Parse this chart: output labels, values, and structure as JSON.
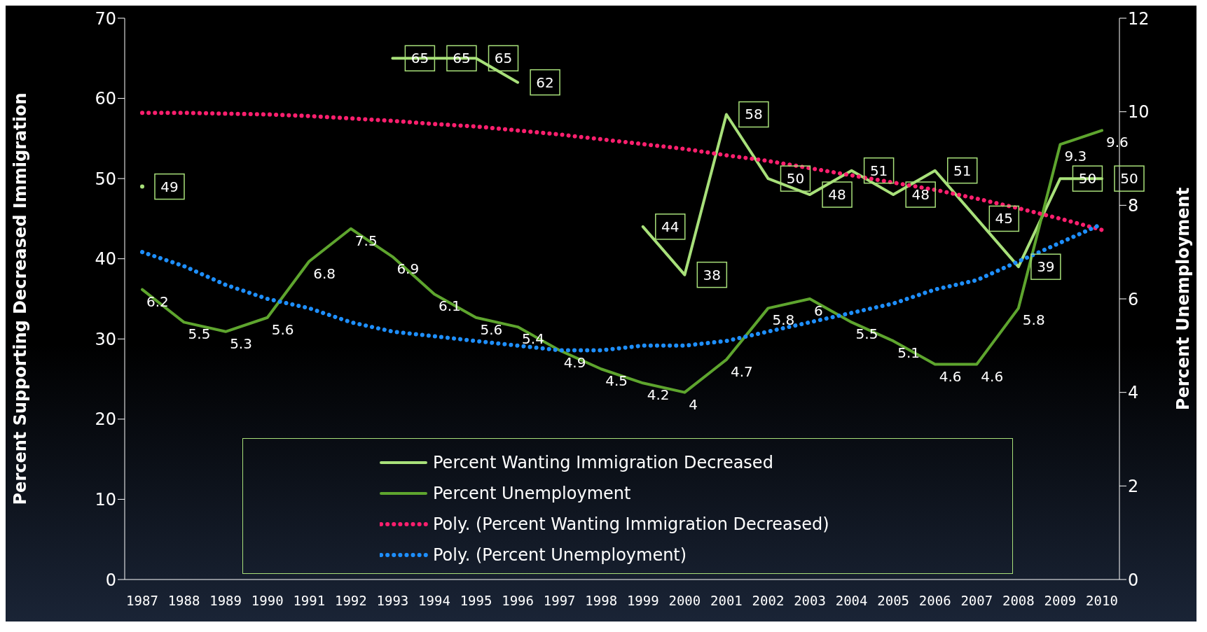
{
  "chart_data": {
    "type": "line",
    "ylabel": "Percent Supporting Decreased Immigration",
    "y2label": "Percent Unemployment",
    "categories": [
      "1987",
      "1988",
      "1989",
      "1990",
      "1991",
      "1992",
      "1993",
      "1994",
      "1995",
      "1996",
      "1997",
      "1998",
      "1999",
      "2000",
      "2001",
      "2002",
      "2003",
      "2004",
      "2005",
      "2006",
      "2007",
      "2008",
      "2009",
      "2010"
    ],
    "ylim": [
      0,
      70
    ],
    "yticks": [
      0,
      10,
      20,
      30,
      40,
      50,
      60,
      70
    ],
    "y2lim": [
      0,
      12
    ],
    "y2ticks": [
      0,
      2,
      4,
      6,
      8,
      10,
      12
    ],
    "grid": false,
    "legend": "bottom",
    "marker": "none",
    "series": [
      {
        "name": "Percent Wanting Immigration Decreased",
        "color": "#a8e07a",
        "line_style": "solid",
        "values": [
          49,
          null,
          null,
          null,
          null,
          null,
          65,
          65,
          65,
          62,
          null,
          null,
          44,
          38,
          58,
          50,
          48,
          51,
          48,
          51,
          45,
          39,
          50,
          50
        ],
        "value_labels": [
          "49",
          null,
          null,
          null,
          null,
          null,
          "65",
          "65",
          "65",
          "62",
          null,
          null,
          "44",
          "38",
          "58",
          "50",
          "48",
          "51",
          "48",
          "51",
          "45",
          "39",
          "50",
          "50"
        ]
      },
      {
        "name": "Percent Unemployment",
        "color": "#5ea52e",
        "axis": "y2",
        "line_style": "solid",
        "values": [
          6.2,
          5.5,
          5.3,
          5.6,
          6.8,
          7.5,
          6.9,
          6.1,
          5.6,
          5.4,
          4.9,
          4.5,
          4.2,
          4,
          4.7,
          5.8,
          6,
          5.5,
          5.1,
          4.6,
          4.6,
          5.8,
          9.3,
          9.6
        ],
        "value_labels": [
          "6.2",
          "5.5",
          "5.3",
          "5.6",
          "6.8",
          "7.5",
          "6.9",
          "6.1",
          "5.6",
          "5.4",
          "4.9",
          "4.5",
          "4.2",
          "4",
          "4.7",
          "5.8",
          "6",
          "5.5",
          "5.1",
          "4.6",
          "4.6",
          "5.8",
          "9.3",
          "9.6"
        ]
      },
      {
        "name": "Poly. (Percent Wanting Immigration Decreased)",
        "color": "#ff1f6e",
        "line_style": "dotted",
        "values": [
          58.2,
          58.2,
          58.1,
          58.0,
          57.8,
          57.5,
          57.2,
          56.8,
          56.5,
          56.0,
          55.5,
          54.9,
          54.3,
          53.7,
          52.9,
          52.2,
          51.3,
          50.4,
          49.5,
          48.6,
          47.5,
          46.3,
          45.0,
          43.6
        ]
      },
      {
        "name": "Poly. (Percent Unemployment)",
        "color": "#1e8fff",
        "axis": "y2",
        "line_style": "dotted",
        "values": [
          7.0,
          6.7,
          6.3,
          6.0,
          5.8,
          5.5,
          5.3,
          5.2,
          5.1,
          5.0,
          4.9,
          4.9,
          5.0,
          5.0,
          5.1,
          5.3,
          5.5,
          5.7,
          5.9,
          6.2,
          6.4,
          6.8,
          7.2,
          7.6
        ]
      }
    ]
  }
}
